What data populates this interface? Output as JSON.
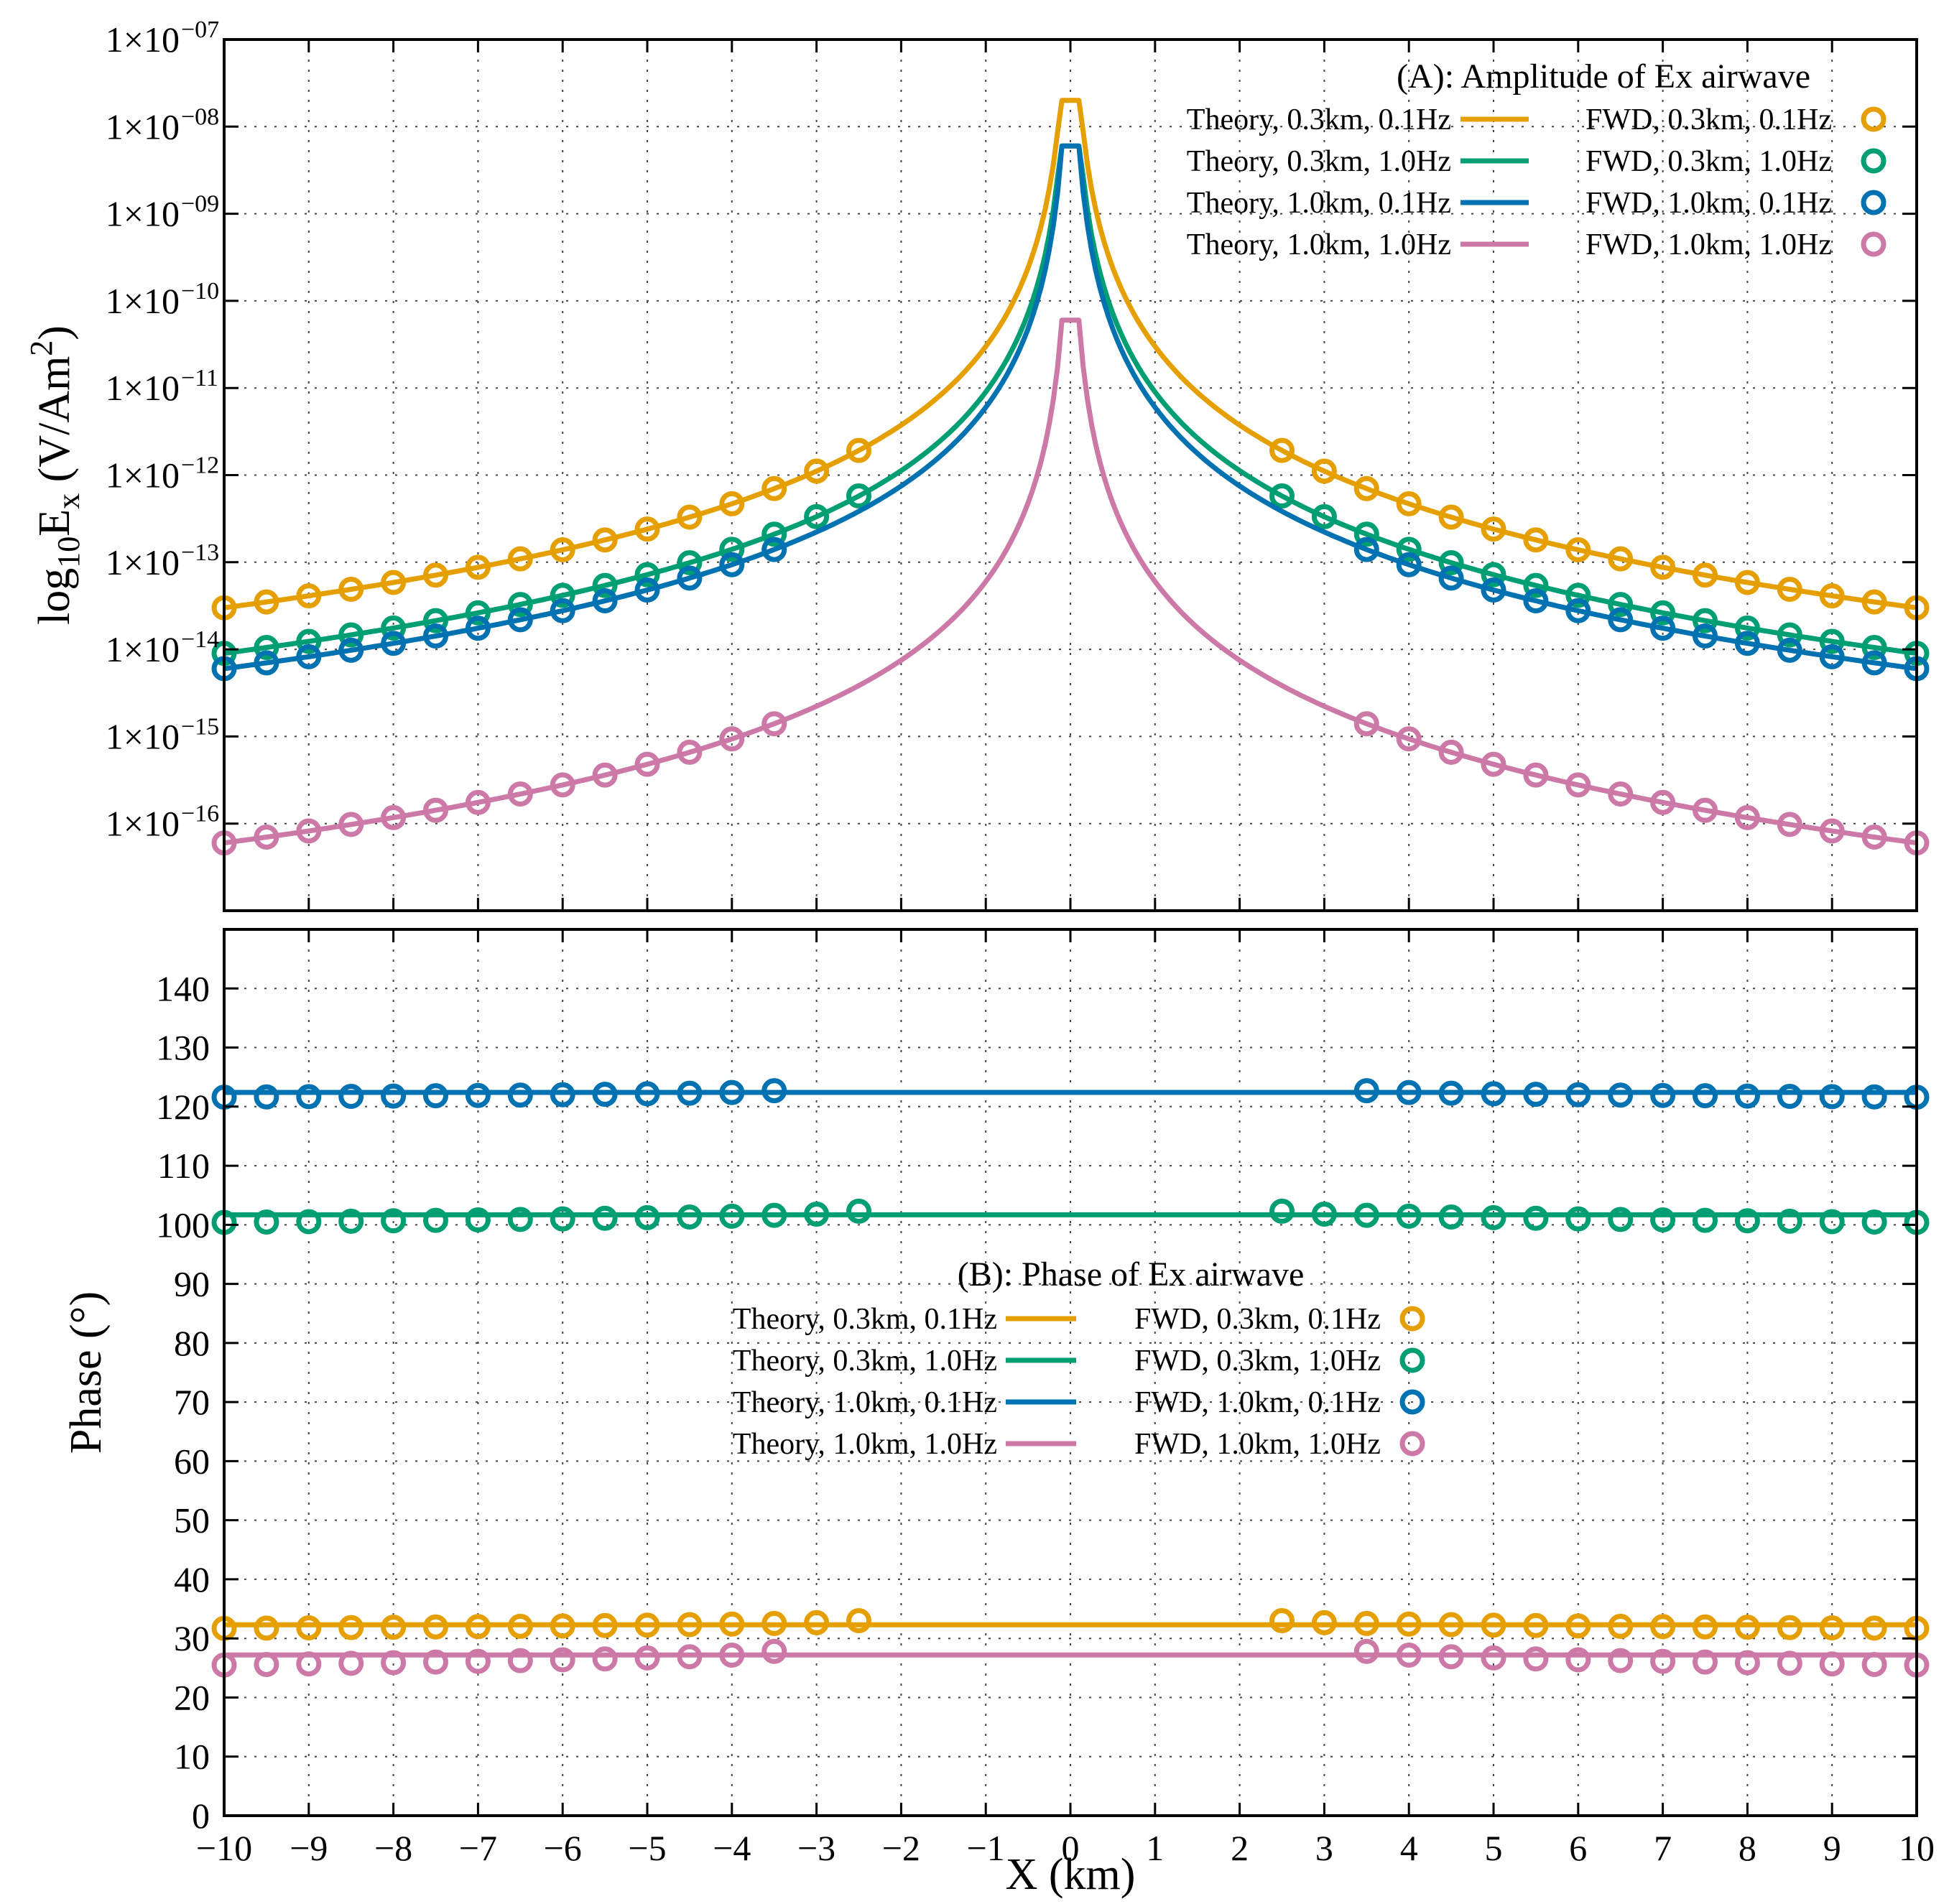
{
  "chart_data": [
    {
      "type": "line",
      "panel": "A",
      "title": "(A): Amplitude of Ex airwave",
      "ylabel": {
        "base": "log",
        "sub": "10",
        "var": "E",
        "var_sub": "x",
        "unit": " (V/Am",
        "unit_sup": "2",
        "unit_end": ")"
      },
      "yscale": "log",
      "ylim_log10": [
        -17,
        -7
      ],
      "xlim": [
        -10,
        10
      ],
      "x_ticks": [
        -10,
        -9,
        -8,
        -7,
        -6,
        -5,
        -4,
        -3,
        -2,
        -1,
        0,
        1,
        2,
        3,
        4,
        5,
        6,
        7,
        8,
        9,
        10
      ],
      "y_ticks": [
        {
          "mantissa": "1×10",
          "exp": "−07",
          "log10": -7
        },
        {
          "mantissa": "1×10",
          "exp": "−08",
          "log10": -8
        },
        {
          "mantissa": "1×10",
          "exp": "−09",
          "log10": -9
        },
        {
          "mantissa": "1×10",
          "exp": "−10",
          "log10": -10
        },
        {
          "mantissa": "1×10",
          "exp": "−11",
          "log10": -11
        },
        {
          "mantissa": "1×10",
          "exp": "−12",
          "log10": -12
        },
        {
          "mantissa": "1×10",
          "exp": "−13",
          "log10": -13
        },
        {
          "mantissa": "1×10",
          "exp": "−14",
          "log10": -14
        },
        {
          "mantissa": "1×10",
          "exp": "−15",
          "log10": -15
        },
        {
          "mantissa": "1×10",
          "exp": "−16",
          "log10": -16
        }
      ],
      "legend_position": "top-right",
      "series": [
        {
          "theory": "Theory, 0.3km, 0.1Hz",
          "fwd": "FWD, 0.3km, 0.1Hz",
          "color": "#E69F00",
          "amp_at_10km": 3e-14,
          "amp_peak": 2e-08,
          "fwd_min_abs_x": 2.5
        },
        {
          "theory": "Theory, 0.3km, 1.0Hz",
          "fwd": "FWD, 0.3km, 1.0Hz",
          "color": "#009E73",
          "amp_at_10km": 9e-15,
          "amp_peak": 6e-09,
          "fwd_min_abs_x": 2.5
        },
        {
          "theory": "Theory, 1.0km, 0.1Hz",
          "fwd": "FWD, 1.0km, 0.1Hz",
          "color": "#0072B2",
          "amp_at_10km": 6e-15,
          "amp_peak": 6e-09,
          "fwd_min_abs_x": 3.5
        },
        {
          "theory": "Theory, 1.0km, 1.0Hz",
          "fwd": "FWD, 1.0km, 1.0Hz",
          "color": "#CC79A7",
          "amp_at_10km": 6e-17,
          "amp_peak": 6e-11,
          "fwd_min_abs_x": 3.5
        }
      ],
      "decay_exponent": 3,
      "x_samples_step": 0.5
    },
    {
      "type": "line",
      "panel": "B",
      "title": "(B): Phase of Ex airwave",
      "ylabel": "Phase (°)",
      "xlabel": "X (km)",
      "ylim": [
        0,
        150
      ],
      "xlim": [
        -10,
        10
      ],
      "x_ticks": [
        -10,
        -9,
        -8,
        -7,
        -6,
        -5,
        -4,
        -3,
        -2,
        -1,
        0,
        1,
        2,
        3,
        4,
        5,
        6,
        7,
        8,
        9,
        10
      ],
      "y_ticks": [
        0,
        10,
        20,
        30,
        40,
        50,
        60,
        70,
        80,
        90,
        100,
        110,
        120,
        130,
        140
      ],
      "legend_position": "center",
      "series": [
        {
          "theory": "Theory, 0.3km, 0.1Hz",
          "fwd": "FWD, 0.3km, 0.1Hz",
          "color": "#E69F00",
          "line_value": 32.3,
          "fwd_near": 33.0,
          "fwd_far": 31.7,
          "fwd_min_abs_x": 2.5
        },
        {
          "theory": "Theory, 0.3km, 1.0Hz",
          "fwd": "FWD, 0.3km, 1.0Hz",
          "color": "#009E73",
          "line_value": 101.7,
          "fwd_near": 102.3,
          "fwd_far": 100.4,
          "fwd_min_abs_x": 2.5
        },
        {
          "theory": "Theory, 1.0km, 0.1Hz",
          "fwd": "FWD, 1.0km, 0.1Hz",
          "color": "#0072B2",
          "line_value": 122.4,
          "fwd_near": 122.7,
          "fwd_far": 121.6,
          "fwd_min_abs_x": 3.5
        },
        {
          "theory": "Theory, 1.0km, 1.0Hz",
          "fwd": "FWD, 1.0km, 1.0Hz",
          "color": "#CC79A7",
          "line_value": 27.2,
          "fwd_near": 27.8,
          "fwd_far": 25.5,
          "fwd_min_abs_x": 3.5
        }
      ]
    }
  ]
}
